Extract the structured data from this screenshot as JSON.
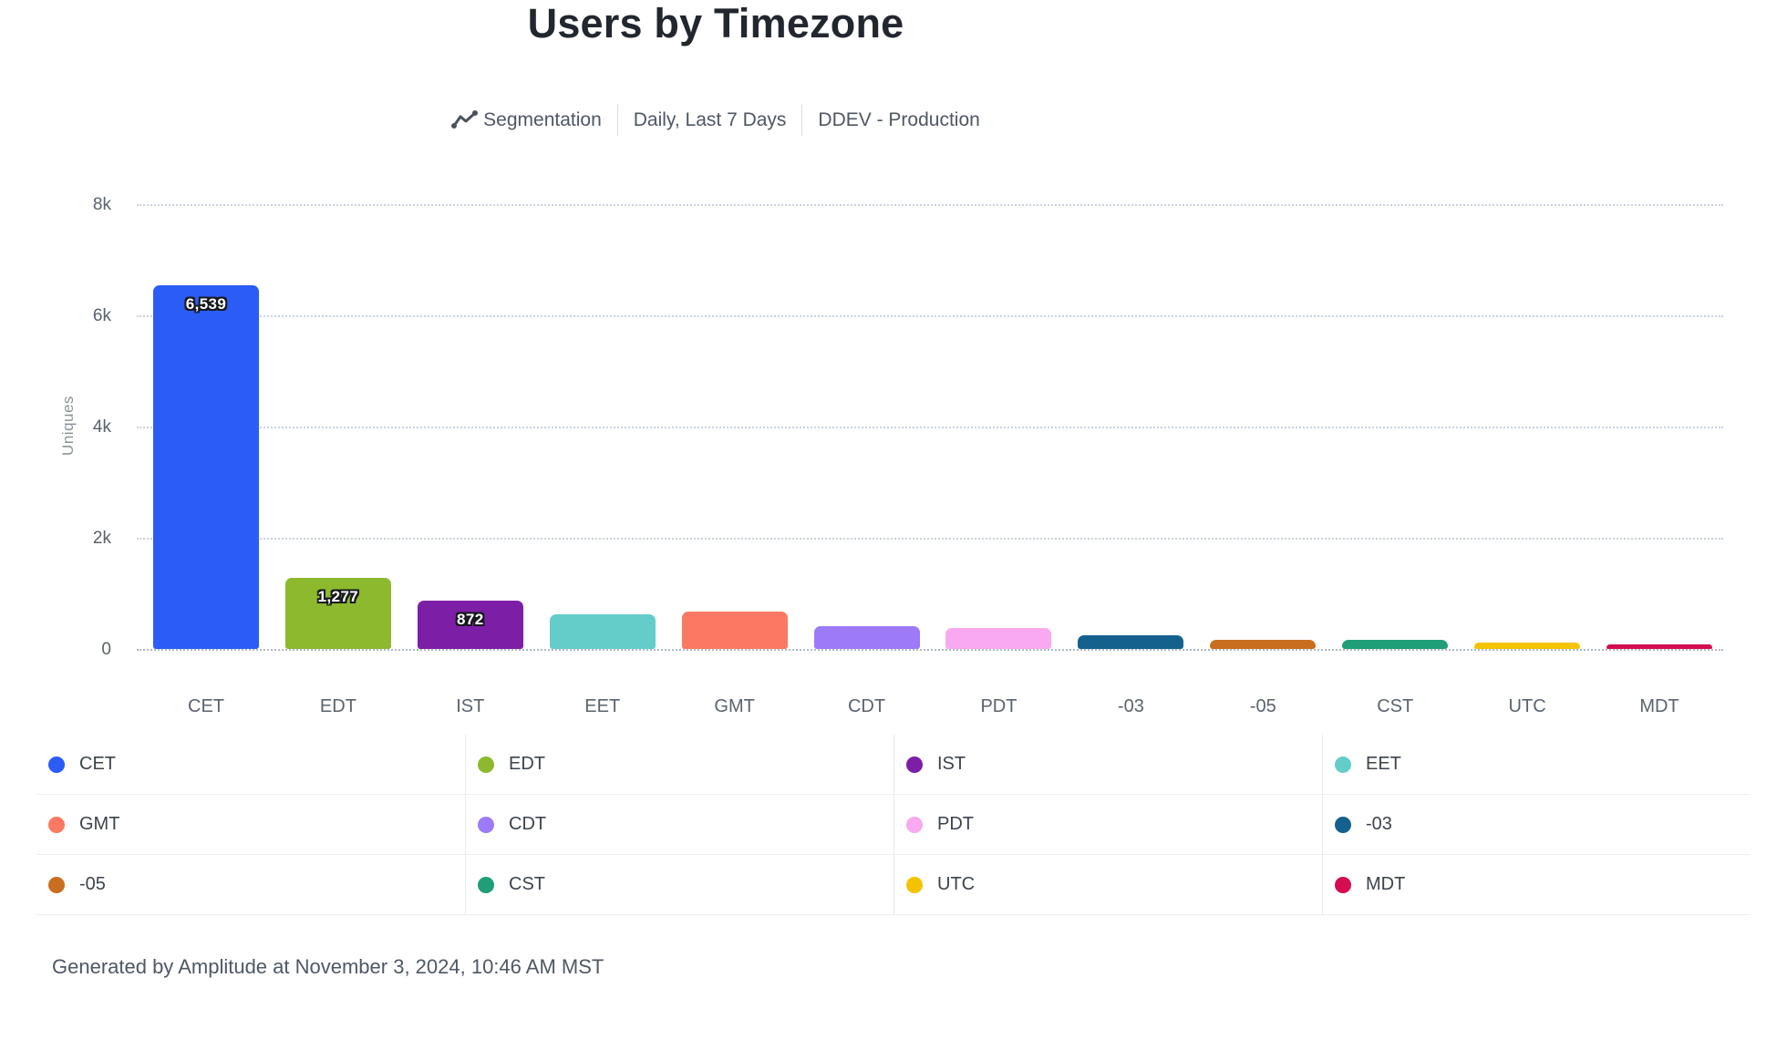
{
  "header": {
    "title": "Users by Timezone",
    "meta": {
      "segmentation_label": "Segmentation",
      "date_range": "Daily, Last 7 Days",
      "project": "DDEV - Production"
    }
  },
  "chart_data": {
    "type": "bar",
    "title": "Users by Timezone",
    "xlabel": "",
    "ylabel": "Uniques",
    "ylim": [
      0,
      8000
    ],
    "ytick_labels": [
      "8k",
      "6k",
      "4k",
      "2k",
      "0"
    ],
    "ytick_values": [
      8000,
      6000,
      4000,
      2000,
      0
    ],
    "grid": "horizontal-dotted",
    "legend_position": "bottom-table-4-columns",
    "categories": [
      "CET",
      "EDT",
      "IST",
      "EET",
      "GMT",
      "CDT",
      "PDT",
      "-03",
      "-05",
      "CST",
      "UTC",
      "MDT"
    ],
    "values": [
      6539,
      1277,
      872,
      620,
      668,
      410,
      375,
      245,
      170,
      165,
      115,
      85
    ],
    "value_labels": [
      "6,539",
      "1,277",
      "872",
      "",
      "",
      "",
      "",
      "",
      "",
      "",
      "",
      ""
    ],
    "colors": [
      "#2B5CF6",
      "#8CB92E",
      "#7C1FA6",
      "#65CDC9",
      "#FB7962",
      "#9C7AF8",
      "#F8A9EF",
      "#15618E",
      "#C96E1E",
      "#1F9E77",
      "#F3C301",
      "#D30D4E"
    ]
  },
  "footer": {
    "text": "Generated by Amplitude at November 3, 2024, 10:46 AM MST"
  }
}
